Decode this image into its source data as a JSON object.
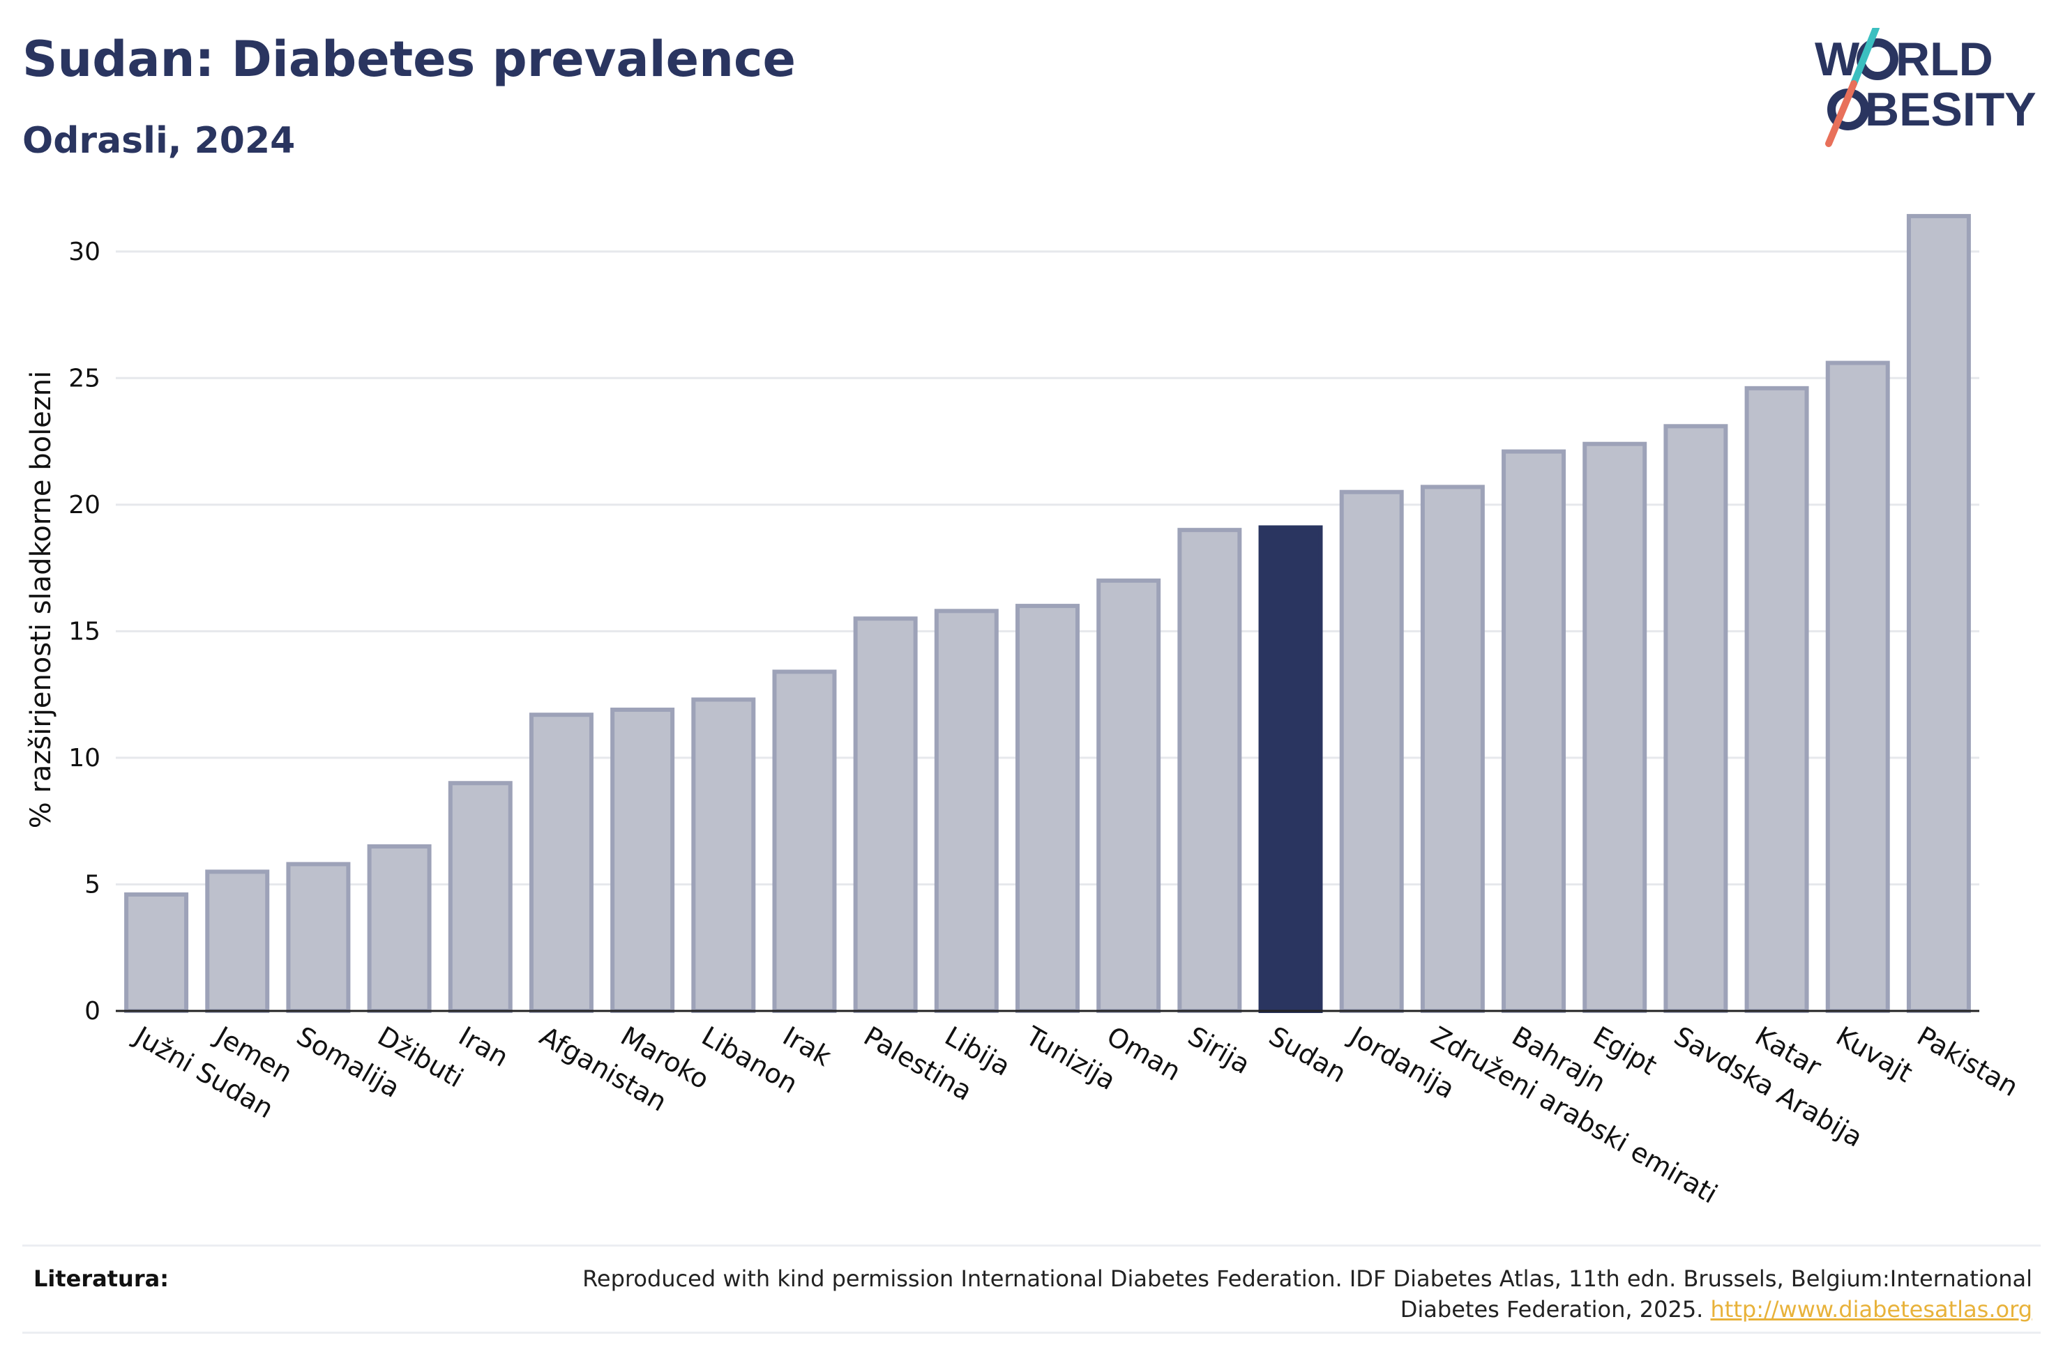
{
  "header": {
    "title": "Sudan: Diabetes prevalence",
    "subtitle": "Odrasli, 2024"
  },
  "logo": {
    "line1": "W",
    "line1b": "RLD",
    "line2": "BESITY",
    "text": "WORLD OBESITY"
  },
  "colors": {
    "bar": "#bdc0cc",
    "bar_stroke": "#9da2b8",
    "highlight": "#2a3560",
    "grid": "#e6e8ec",
    "logo_teal": "#3bbfc0",
    "logo_coral": "#e8705a"
  },
  "chart_data": {
    "type": "bar",
    "title": "Sudan: Diabetes prevalence",
    "subtitle": "Odrasli, 2024",
    "ylabel": "% razširjenosti sladkorne bolezni",
    "xlabel": "",
    "ylim": [
      0,
      32.5
    ],
    "yticks": [
      0,
      5,
      10,
      15,
      20,
      25,
      30
    ],
    "grid": true,
    "highlight": "Sudan",
    "categories": [
      "Južni Sudan",
      "Jemen",
      "Somalija",
      "Džibuti",
      "Iran",
      "Afganistan",
      "Maroko",
      "Libanon",
      "Irak",
      "Palestina",
      "Libija",
      "Tunizija",
      "Oman",
      "Sirija",
      "Sudan",
      "Jordanija",
      "Združeni arabski emirati",
      "Bahrajn",
      "Egipt",
      "Savdska Arabija",
      "Katar",
      "Kuvajt",
      "Pakistan"
    ],
    "values": [
      4.6,
      5.5,
      5.8,
      6.5,
      9.0,
      11.7,
      11.9,
      12.3,
      13.4,
      15.5,
      15.8,
      16.0,
      17.0,
      19.0,
      19.1,
      20.5,
      20.7,
      22.1,
      22.4,
      23.1,
      24.6,
      25.6,
      31.4
    ]
  },
  "footer": {
    "literature_label": "Literatura:",
    "source_text": "Reproduced with kind permission International Diabetes Federation. IDF Diabetes Atlas, 11th edn. Brussels, Belgium:International Diabetes Federation, 2025.",
    "source_link": "http://www.diabetesatlas.org"
  }
}
